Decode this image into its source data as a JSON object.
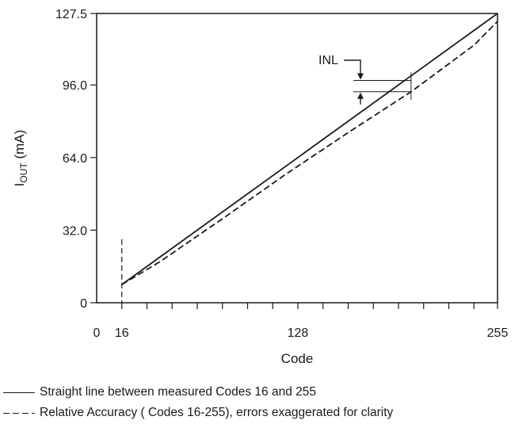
{
  "chart_data": {
    "type": "line",
    "xlabel": "Code",
    "ylabel_main": "I",
    "ylabel_sub": "OUT",
    "ylabel_rest": " (mA)",
    "xlim": [
      0,
      255
    ],
    "ylim": [
      0,
      127.5
    ],
    "x_ticks": [
      0,
      16,
      128,
      255
    ],
    "x_tick_labels": [
      "0",
      "16",
      "128",
      "255"
    ],
    "x_minor_ticks": [
      16,
      32,
      48,
      64,
      80,
      96,
      112,
      128,
      144,
      160,
      176,
      192,
      208,
      224,
      240,
      255
    ],
    "y_ticks": [
      0,
      32,
      64,
      96,
      127.5
    ],
    "y_tick_labels": [
      "0",
      "32.0",
      "64.0",
      "96.0",
      "127.5"
    ],
    "grid": false,
    "series": [
      {
        "name": "Straight line between measured Codes 16 and 255",
        "style": "solid",
        "color": "#1a1a1a",
        "x": [
          16,
          255
        ],
        "y": [
          8,
          127.5
        ]
      },
      {
        "name": "Relative Accuracy ( Codes 16-255), errors exaggerated for clarity",
        "style": "dashed",
        "color": "#1a1a1a",
        "x": [
          16,
          40,
          80,
          120,
          160,
          200,
          240,
          255
        ],
        "y": [
          8,
          18,
          37,
          56.5,
          75,
          93,
          113.5,
          124
        ]
      }
    ],
    "annotations": {
      "inl_label": "INL",
      "inl_x": 200,
      "inl_upper_y": 98,
      "inl_lower_y": 93,
      "code16_marker_x": 16,
      "code16_marker_ymax": 28
    }
  },
  "legend": {
    "entries": [
      {
        "style": "solid",
        "text": "Straight line between measured Codes 16 and 255"
      },
      {
        "style": "dashed",
        "text": "Relative Accuracy ( Codes 16-255), errors exaggerated for clarity"
      }
    ]
  }
}
